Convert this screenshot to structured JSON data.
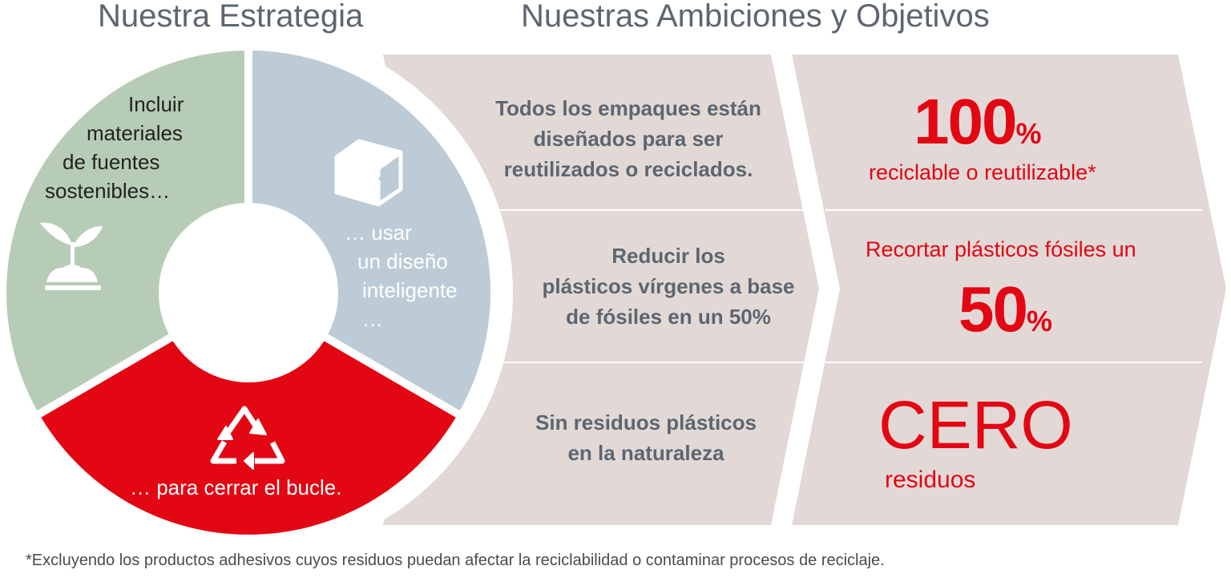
{
  "titles": {
    "strategy": "Nuestra Estrategia",
    "ambitions": "Nuestras Ambiciones y Objetivos"
  },
  "strategy": {
    "green_text": [
      "Incluir",
      "materiales",
      "de fuentes",
      "sostenibles…"
    ],
    "blue_text": [
      "… usar",
      "un diseño",
      "inteligente",
      "…"
    ],
    "red_text": "… para cerrar el bucle."
  },
  "ambitions": [
    {
      "goal": [
        "Todos los empaques están",
        "diseñados para ser",
        "reutilizados o reciclados."
      ]
    },
    {
      "goal": [
        "Reducir los",
        "plásticos vírgenes a base",
        "de fósiles en un 50%"
      ]
    },
    {
      "goal": [
        "Sin residuos plásticos",
        "en la naturaleza"
      ]
    }
  ],
  "objectives": {
    "o1_number": "100",
    "o1_pct": "%",
    "o1_sub": "reciclable o reutilizable*",
    "o2_pre": "Recortar plásticos fósiles un",
    "o2_number": "50",
    "o2_pct": "%",
    "o3_big": "CERO",
    "o3_sub": "residuos"
  },
  "footnote": "*Excluyendo los productos adhesivos cuyos residuos puedan afectar la reciclabilidad o contaminar procesos de reciclaje.",
  "colors": {
    "green": "#b7ccb6",
    "blue": "#bccbd6",
    "red": "#e30613",
    "beige": "#e2d9d7",
    "gray_text": "#5d6670",
    "icon_white": "#ffffff"
  },
  "icons": [
    "plant-sprout-icon",
    "package-box-icon",
    "recycle-icon"
  ]
}
